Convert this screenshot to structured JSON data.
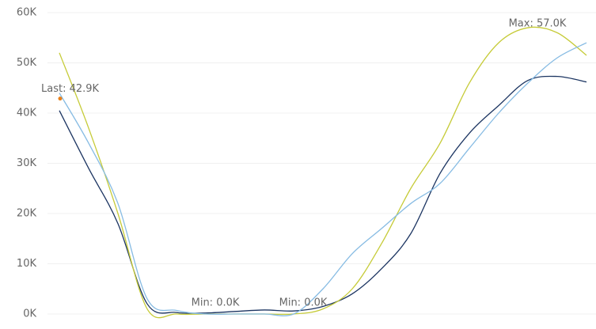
{
  "chart_data": {
    "type": "line",
    "categories": [
      null,
      null,
      null,
      null,
      null,
      null,
      null,
      null,
      null,
      null,
      null,
      null,
      null,
      null,
      null,
      null,
      null,
      null,
      null
    ],
    "series": [
      {
        "color": "#1b3461",
        "values": [
          40500,
          29000,
          18000,
          2000,
          300,
          200,
          500,
          800,
          600,
          1500,
          4000,
          9000,
          16000,
          28000,
          36000,
          41500,
          46500,
          47300,
          46200
        ]
      },
      {
        "color": "#c6cb38",
        "values": [
          52000,
          37000,
          20000,
          1000,
          0,
          0,
          0,
          0,
          0,
          1000,
          5000,
          14000,
          25000,
          34000,
          46000,
          54000,
          57000,
          56000,
          51500
        ]
      },
      {
        "color": "#86bbe3",
        "values": [
          44000,
          34000,
          22000,
          3000,
          700,
          0,
          0,
          0,
          0,
          5000,
          12000,
          17000,
          22000,
          26000,
          33000,
          40000,
          46000,
          51000,
          54000
        ]
      }
    ],
    "annotations": [
      {
        "text": "Last: 42.9K",
        "value": 42900,
        "index": 0,
        "color": "#e8801a"
      },
      {
        "text": "Min: 0.0K",
        "value": 0,
        "index": 5
      },
      {
        "text": "Min: 0.0K",
        "value": 0,
        "index": 8
      },
      {
        "text": "Max: 57.0K",
        "value": 57000,
        "index": 16
      }
    ],
    "ylim": [
      0,
      60000
    ],
    "yticks": [
      {
        "value": 0,
        "label": "0K"
      },
      {
        "value": 10000,
        "label": "10K"
      },
      {
        "value": 20000,
        "label": "20K"
      },
      {
        "value": 30000,
        "label": "30K"
      },
      {
        "value": 40000,
        "label": "40K"
      },
      {
        "value": 50000,
        "label": "50K"
      },
      {
        "value": 60000,
        "label": "60K"
      }
    ],
    "grid": true
  }
}
